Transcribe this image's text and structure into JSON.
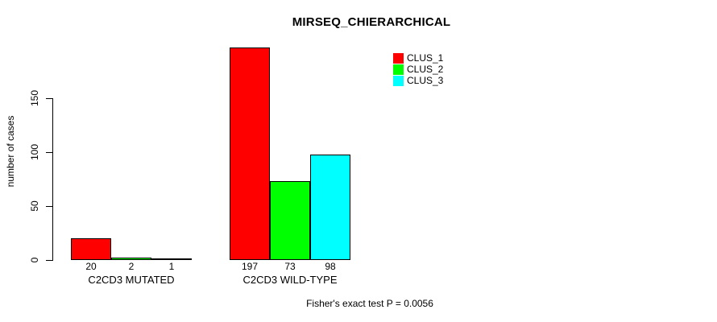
{
  "chart_data": {
    "type": "bar",
    "title": "MIRSEQ_CHIERARCHICAL",
    "xlabel": "",
    "ylabel": "number of cases",
    "categories": [
      "C2CD3 MUTATED",
      "C2CD3 WILD-TYPE"
    ],
    "series": [
      {
        "name": "CLUS_1",
        "color": "#ff0000",
        "values": [
          20,
          197
        ]
      },
      {
        "name": "CLUS_2",
        "color": "#00ff00",
        "values": [
          2,
          73
        ]
      },
      {
        "name": "CLUS_3",
        "color": "#00ffff",
        "values": [
          1,
          98
        ]
      }
    ],
    "yticks": [
      0,
      50,
      100,
      150
    ],
    "ylim": [
      0,
      205
    ],
    "grid": false,
    "bar_value_labels": [
      20,
      2,
      1,
      197,
      73,
      98
    ],
    "legend_position": "top-right",
    "legend_entries": [
      "CLUS_1",
      "CLUS_2",
      "CLUS_3"
    ],
    "annotation": "Fisher's exact test P = 0.0056"
  }
}
